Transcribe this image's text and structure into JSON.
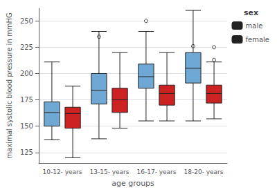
{
  "chart_data": {
    "type": "boxplot",
    "xlabel": "age groups",
    "ylabel": "maximal systolic blood pressure in mmHG",
    "categories": [
      "10-12- years",
      "13-15- years",
      "16-17- years",
      "18-20- years"
    ],
    "ylim": [
      115,
      262
    ],
    "yticks": [
      125,
      150,
      175,
      200,
      225,
      250
    ],
    "grid": true,
    "legend": "upper right",
    "legend_title": "sex",
    "series": [
      {
        "name": "male",
        "color": "#6FA8D4",
        "values": [
          {
            "whislo": 137,
            "q1": 150,
            "med": 163,
            "q3": 173,
            "whishi": 211
          },
          {
            "whislo": 138,
            "q1": 171,
            "med": 184,
            "q3": 200,
            "whishi": 240
          },
          {
            "whislo": 155,
            "q1": 186,
            "med": 197,
            "q3": 209,
            "whishi": 240
          },
          {
            "whislo": 155,
            "q1": 191,
            "med": 205,
            "q3": 220,
            "whishi": 260
          }
        ],
        "fliers": [
          [],
          [
            235
          ],
          [
            250
          ],
          [
            226
          ]
        ]
      },
      {
        "name": "female",
        "color": "#CC2222",
        "values": [
          {
            "whislo": 120,
            "q1": 148,
            "med": 162,
            "q3": 168,
            "whishi": 188
          },
          {
            "whislo": 148,
            "q1": 163,
            "med": 175,
            "q3": 186,
            "whishi": 220
          },
          {
            "whislo": 155,
            "q1": 170,
            "med": 181,
            "q3": 189,
            "whishi": 220
          },
          {
            "whislo": 157,
            "q1": 172,
            "med": 181,
            "q3": 189,
            "whishi": 211
          }
        ],
        "fliers": [
          [],
          [],
          [],
          [
            225,
            213
          ]
        ]
      }
    ]
  }
}
